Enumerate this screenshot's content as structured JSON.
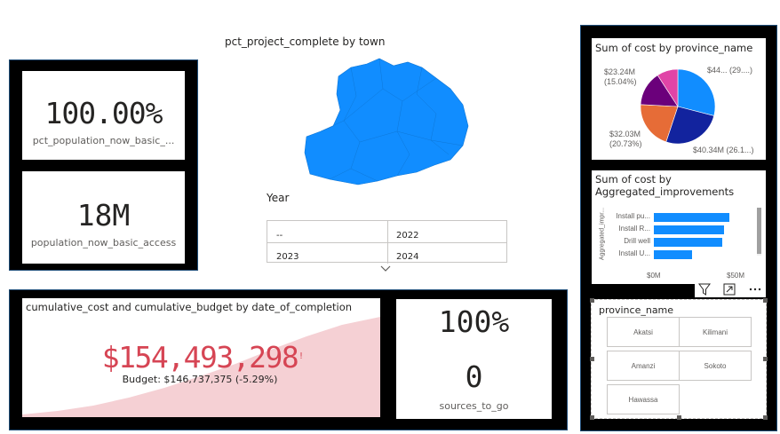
{
  "cards": {
    "pct_population": {
      "value": "100.00%",
      "label": "pct_population_now_basic_..."
    },
    "population": {
      "value": "18M",
      "label": "population_now_basic_access"
    },
    "pct_sources": {
      "value": "100%"
    },
    "sources": {
      "value": "0",
      "label": "sources_to_go"
    }
  },
  "map": {
    "title": "pct_project_complete by town",
    "fill_color": "#118dff"
  },
  "year_slicer": {
    "title": "Year",
    "options": [
      "--",
      "2022",
      "2023",
      "2024"
    ]
  },
  "cumulative_chart": {
    "title": "cumulative_cost and cumulative_budget by date_of_completion",
    "kpi_value": "$154,493,298",
    "kpi_marker": "!",
    "budget_text": "Budget: $146,737,375 (-5.29%)",
    "kpi_color": "#d64554",
    "area_color": "#f5d0d4"
  },
  "pie_chart": {
    "title": "Sum of cost by province_name",
    "slice_labels": [
      "$44... (29....)",
      "$40.34M (26.1...)",
      "$32.03M",
      "(20.73%)",
      "$23.24M",
      "(15.04%)"
    ]
  },
  "chart_data": [
    {
      "type": "pie",
      "title": "Sum of cost by province_name",
      "slices": [
        {
          "label": "$44... (29....)",
          "value": 29.0,
          "color": "#118dff"
        },
        {
          "label": "$40.34M (26.1...)",
          "value": 26.1,
          "color": "#12239e"
        },
        {
          "label": "$32.03M (20.73%)",
          "value": 20.73,
          "color": "#e66c37"
        },
        {
          "label": "$23.24M (15.04%)",
          "value": 15.04,
          "color": "#6b007b"
        },
        {
          "label": "",
          "value": 9.13,
          "color": "#e044a7"
        }
      ]
    },
    {
      "type": "bar",
      "title": "Sum of cost by Aggregated_improvements",
      "ylabel": "Aggregated_impr...",
      "categories": [
        "Install pu...",
        "Install R...",
        "Drill well",
        "Install U..."
      ],
      "values": [
        47,
        44,
        43,
        24
      ],
      "xlim": [
        0,
        50
      ],
      "xticks": [
        "$0M",
        "$50M"
      ],
      "bar_color": "#118dff"
    }
  ],
  "province_slicer": {
    "title": "province_name",
    "items": [
      "Akatsi",
      "Kilimani",
      "Amanzi",
      "Sokoto",
      "Hawassa"
    ]
  },
  "visual_header": {
    "icons": [
      "filter-icon",
      "focus-mode-icon",
      "more-options-icon"
    ]
  }
}
